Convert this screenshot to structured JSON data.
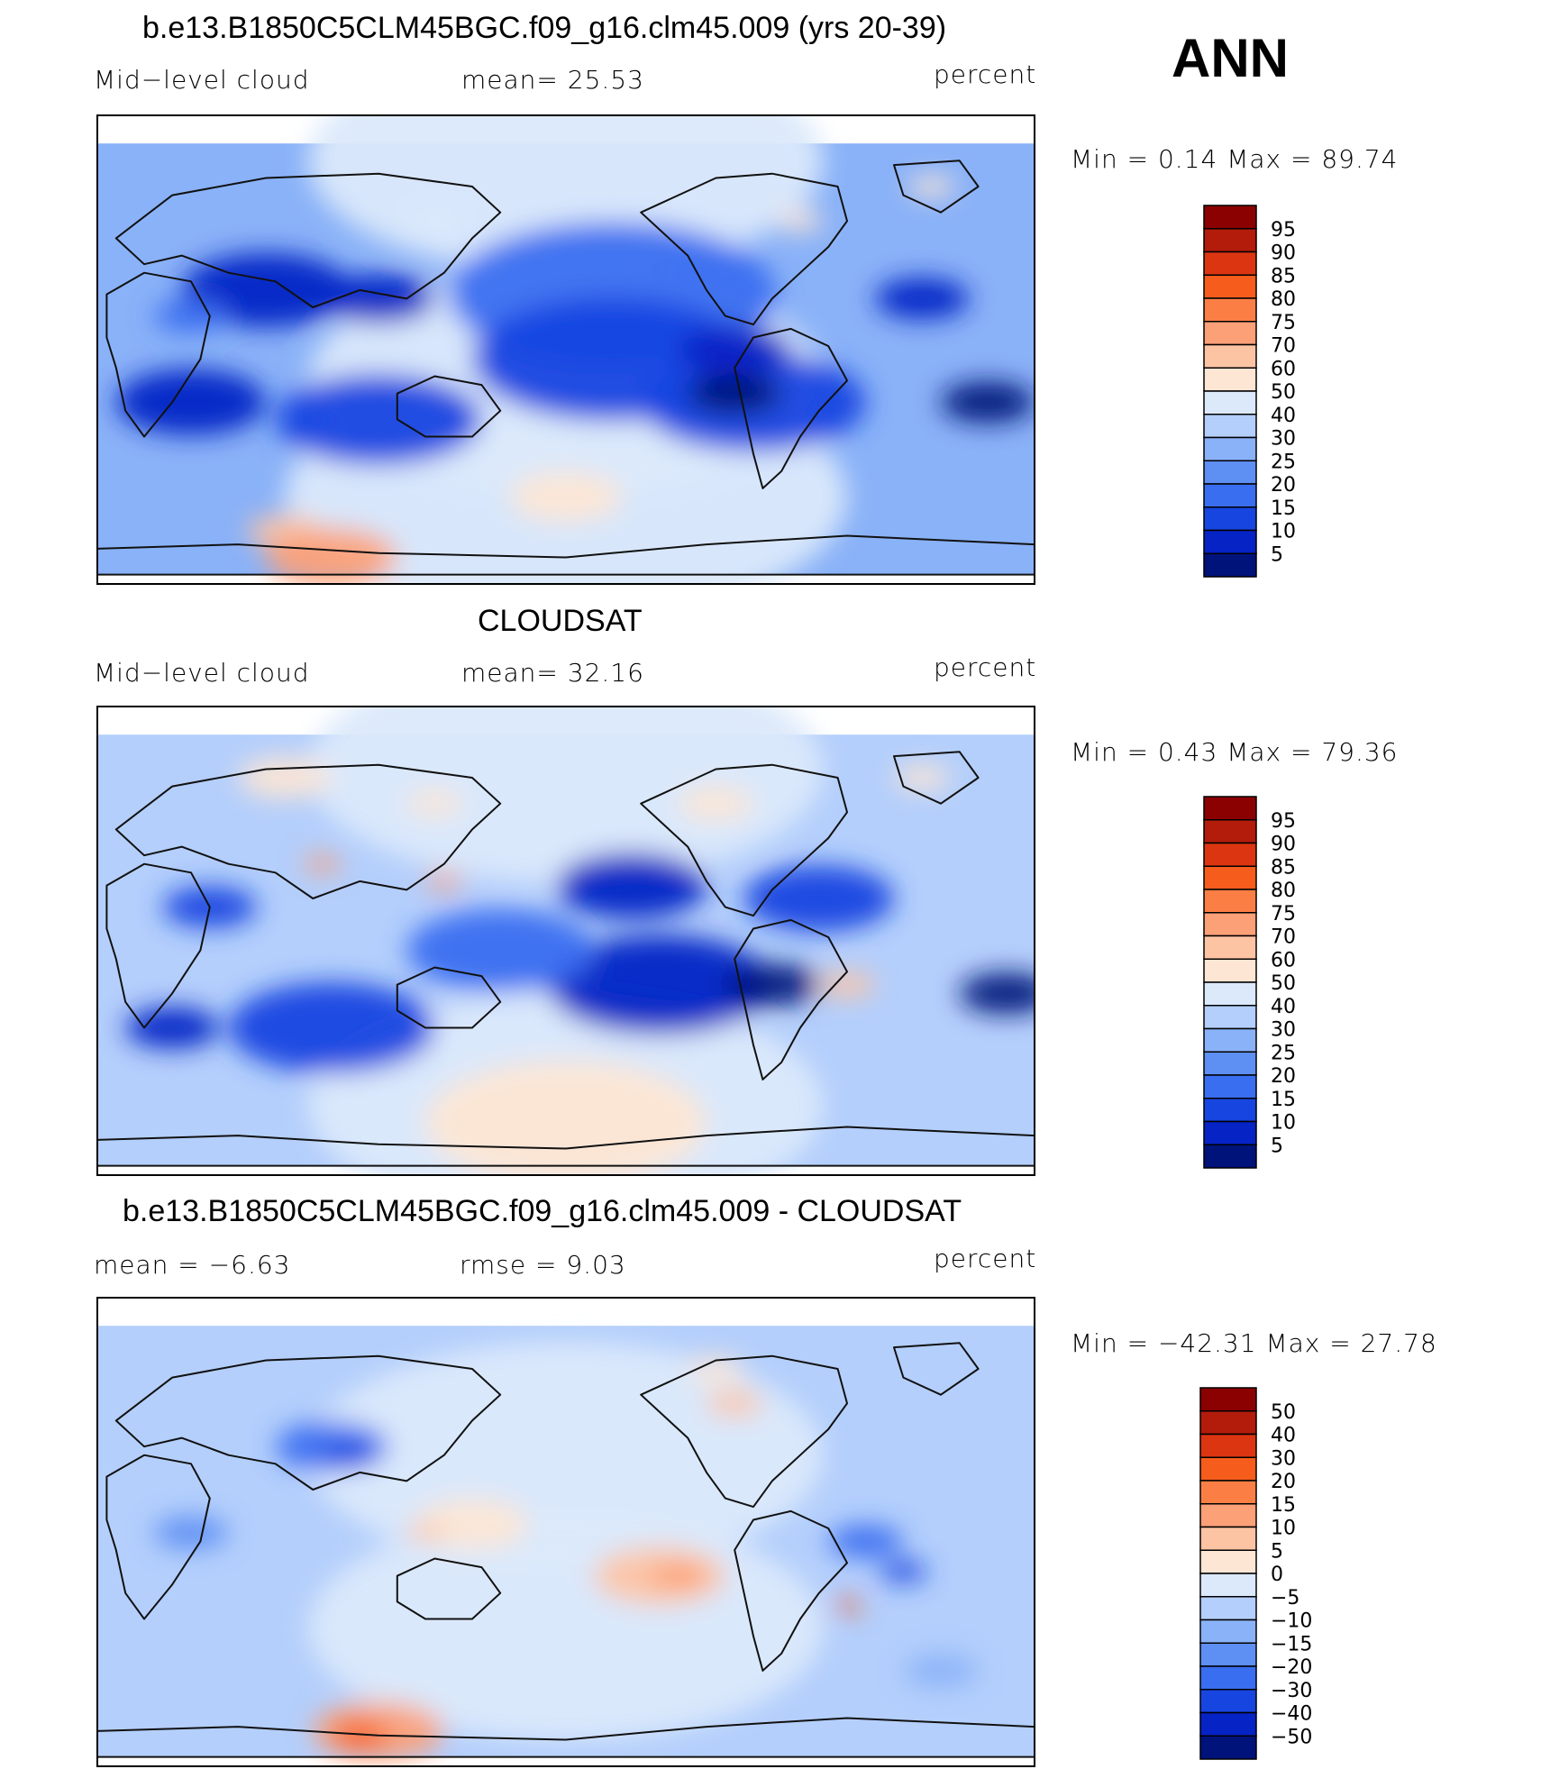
{
  "season": "ANN",
  "panels": [
    {
      "title": "b.e13.B1850C5CLM45BGC.f09_g16.clm45.009 (yrs 20-39)",
      "left_label": "Mid−level cloud",
      "center_label": "mean=   25.53",
      "units": "percent",
      "minmax": "Min  =    0.14  Max  =   89.74",
      "colorbar_labels": [
        "95",
        "90",
        "85",
        "80",
        "75",
        "70",
        "60",
        "50",
        "40",
        "30",
        "25",
        "20",
        "15",
        "10",
        "5"
      ],
      "colorbar_colors": [
        "#8b0000",
        "#b31c0b",
        "#dc3511",
        "#f65c1c",
        "#fb7f45",
        "#fca077",
        "#fdc4a4",
        "#fde6d4",
        "#dbe9fb",
        "#b4cffc",
        "#8ab2f8",
        "#5e8ff3",
        "#3a6ef0",
        "#1745e0",
        "#0623c5",
        "#00137a"
      ],
      "mean_value": 25.53,
      "min_value": 0.14,
      "max_value": 89.74
    },
    {
      "title": "CLOUDSAT",
      "left_label": "Mid−level cloud",
      "center_label": "mean=   32.16",
      "units": "percent",
      "minmax": "Min  =    0.43  Max  =   79.36",
      "colorbar_labels": [
        "95",
        "90",
        "85",
        "80",
        "75",
        "70",
        "60",
        "50",
        "40",
        "30",
        "25",
        "20",
        "15",
        "10",
        "5"
      ],
      "colorbar_colors": [
        "#8b0000",
        "#b31c0b",
        "#dc3511",
        "#f65c1c",
        "#fb7f45",
        "#fca077",
        "#fdc4a4",
        "#fde6d4",
        "#dbe9fb",
        "#b4cffc",
        "#8ab2f8",
        "#5e8ff3",
        "#3a6ef0",
        "#1745e0",
        "#0623c5",
        "#00137a"
      ],
      "mean_value": 32.16,
      "min_value": 0.43,
      "max_value": 79.36
    },
    {
      "title": "b.e13.B1850C5CLM45BGC.f09_g16.clm45.009 - CLOUDSAT",
      "left_label": "mean  =    −6.63",
      "center_label": "rmse  =     9.03",
      "units": "percent",
      "minmax": "Min  = −42.31  Max  =    27.78",
      "colorbar_labels": [
        "50",
        "40",
        "30",
        "20",
        "15",
        "10",
        "5",
        "0",
        "−5",
        "−10",
        "−15",
        "−20",
        "−30",
        "−40",
        "−50"
      ],
      "colorbar_colors": [
        "#8b0000",
        "#b31c0b",
        "#dc3511",
        "#f65c1c",
        "#fb7f45",
        "#fca077",
        "#fdc4a4",
        "#fde6d4",
        "#dbe9fb",
        "#b4cffc",
        "#8ab2f8",
        "#5e8ff3",
        "#3a6ef0",
        "#1745e0",
        "#0623c5",
        "#00137a"
      ],
      "mean_value": -6.63,
      "rmse_value": 9.03,
      "min_value": -42.31,
      "max_value": 27.78
    }
  ]
}
